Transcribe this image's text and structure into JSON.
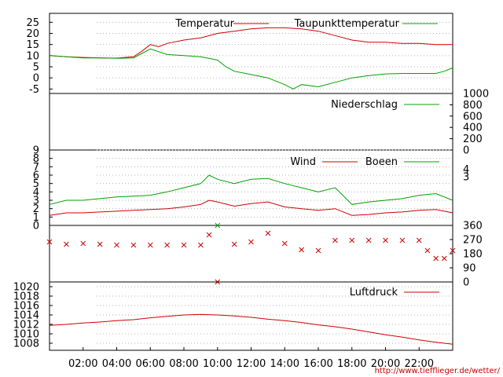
{
  "chart_data": [
    {
      "panel": "temperature",
      "type": "line",
      "ylim": [
        -7,
        29
      ],
      "y_ticks": [
        "-5",
        "0",
        "5",
        "10",
        "15",
        "20",
        "25"
      ],
      "series": [
        {
          "name": "Temperatur",
          "color": "#cc0000",
          "x": [
            0,
            1,
            2,
            3,
            4,
            5,
            5.5,
            6,
            6.5,
            7,
            8,
            9,
            10,
            11,
            12,
            13,
            14,
            15,
            16,
            17,
            18,
            19,
            20,
            21,
            22,
            23,
            24
          ],
          "y": [
            10,
            9.5,
            9.2,
            9,
            8.9,
            9.5,
            12,
            15,
            14,
            15.5,
            17,
            18,
            20,
            21,
            22,
            22.5,
            22.5,
            22,
            21,
            19,
            17,
            16,
            16,
            15.5,
            15.5,
            15,
            15
          ]
        },
        {
          "name": "Taupunkttemperatur",
          "color": "#00a000",
          "x": [
            0,
            1,
            2,
            3,
            4,
            5,
            5.5,
            6,
            7,
            8,
            9,
            10,
            10.5,
            11,
            12,
            13,
            14,
            14.5,
            15,
            16,
            17,
            18,
            19,
            20,
            21,
            22,
            23,
            23.5,
            24
          ],
          "y": [
            10,
            9.5,
            9,
            9,
            8.8,
            9,
            11,
            13,
            10.5,
            10,
            9.5,
            8,
            5,
            3,
            1.5,
            0,
            -3,
            -5,
            -3,
            -4,
            -2,
            0,
            1,
            1.8,
            2,
            2,
            2,
            3,
            4.5
          ]
        }
      ]
    },
    {
      "panel": "precipitation",
      "type": "line",
      "ylim": [
        0,
        1000
      ],
      "y_ticks": [
        "0",
        "200",
        "400",
        "600",
        "800",
        "1000"
      ],
      "series": [
        {
          "name": "Niederschlag",
          "color": "#00a000",
          "x": [
            0,
            24
          ],
          "y": [
            0,
            0
          ]
        }
      ]
    },
    {
      "panel": "wind",
      "type": "line",
      "ylim": [
        0,
        9
      ],
      "y_ticks": [
        "0",
        "1",
        "2",
        "3",
        "4",
        "5",
        "6",
        "7",
        "8",
        "9"
      ],
      "y_ticks_right": [
        "3",
        "4"
      ],
      "series": [
        {
          "name": "Wind",
          "color": "#cc0000",
          "x": [
            0,
            1,
            2,
            3,
            4,
            5,
            6,
            7,
            8,
            9,
            9.5,
            10,
            11,
            12,
            13,
            14,
            15,
            16,
            17,
            18,
            19,
            20,
            21,
            22,
            23,
            24
          ],
          "y": [
            1.2,
            1.5,
            1.5,
            1.6,
            1.7,
            1.8,
            1.9,
            2.0,
            2.2,
            2.5,
            3.0,
            2.8,
            2.3,
            2.6,
            2.8,
            2.2,
            2.0,
            1.8,
            2.0,
            1.2,
            1.3,
            1.5,
            1.6,
            1.8,
            1.9,
            1.5
          ]
        },
        {
          "name": "Boeen",
          "color": "#00a000",
          "x": [
            0,
            1,
            2,
            3,
            4,
            5,
            6,
            7,
            8,
            9,
            9.5,
            10,
            11,
            12,
            13,
            14,
            15,
            16,
            17,
            18,
            19,
            20,
            21,
            22,
            23,
            24
          ],
          "y": [
            2.5,
            3.0,
            3.0,
            3.2,
            3.4,
            3.5,
            3.6,
            4.0,
            4.5,
            5.0,
            6.0,
            5.5,
            5.0,
            5.5,
            5.6,
            5.0,
            4.5,
            4.0,
            4.5,
            2.5,
            2.8,
            3.0,
            3.2,
            3.6,
            3.8,
            3.0
          ]
        }
      ]
    },
    {
      "panel": "wind_direction",
      "type": "scatter",
      "ylim": [
        0,
        360
      ],
      "y_ticks": [
        "0",
        "90",
        "180",
        "270",
        "360"
      ],
      "series": [
        {
          "name": "",
          "color": "#cc0000",
          "x": [
            0,
            1,
            2,
            3,
            4,
            5,
            6,
            7,
            8,
            9,
            9.5,
            10,
            11,
            12,
            13,
            14,
            15,
            16,
            17,
            18,
            19,
            20,
            21,
            22,
            22.5,
            23,
            23.5,
            24
          ],
          "y": [
            255,
            240,
            245,
            240,
            235,
            235,
            235,
            235,
            235,
            235,
            300,
            0,
            240,
            255,
            310,
            245,
            205,
            200,
            265,
            265,
            265,
            265,
            265,
            265,
            200,
            150,
            150,
            200
          ]
        },
        {
          "name": "",
          "color": "#00a000",
          "x": [
            10
          ],
          "y": [
            360
          ]
        }
      ]
    },
    {
      "panel": "pressure",
      "type": "line",
      "ylim": [
        1006.5,
        1021
      ],
      "y_ticks": [
        "1008",
        "1010",
        "1012",
        "1014",
        "1016",
        "1018",
        "1020"
      ],
      "series": [
        {
          "name": "Luftdruck",
          "color": "#cc0000",
          "x": [
            0,
            1,
            2,
            3,
            4,
            5,
            6,
            7,
            8,
            9,
            10,
            11,
            12,
            13,
            14,
            15,
            16,
            17,
            18,
            19,
            20,
            21,
            22,
            23,
            24
          ],
          "y": [
            1011.8,
            1012.0,
            1012.3,
            1012.5,
            1012.8,
            1013.0,
            1013.4,
            1013.7,
            1014.0,
            1014.1,
            1014.0,
            1013.8,
            1013.5,
            1013.1,
            1012.8,
            1012.4,
            1011.9,
            1011.5,
            1011.0,
            1010.4,
            1009.8,
            1009.3,
            1008.7,
            1008.2,
            1007.8
          ]
        }
      ]
    }
  ],
  "x_axis": {
    "ticks": [
      "02:00",
      "04:00",
      "06:00",
      "08:00",
      "10:00",
      "12:00",
      "14:00",
      "16:00",
      "18:00",
      "20:00",
      "22:00"
    ]
  },
  "credit": "http://www.tiefflieger.de/wetter/"
}
